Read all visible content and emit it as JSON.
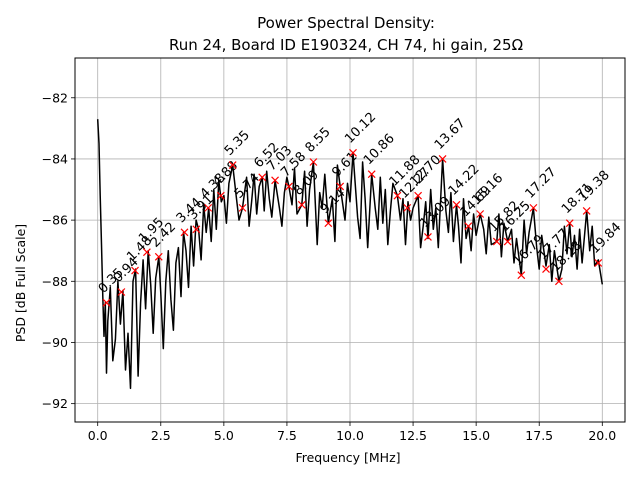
{
  "chart_data": {
    "type": "line",
    "title": "Power Spectral Density:",
    "subtitle": "Run 24, Board ID E190324, CH 74, hi gain, 25Ω",
    "xlabel": "Frequency [MHz]",
    "ylabel": "PSD [dB Full Scale]",
    "xlim": [
      -0.9,
      20.9
    ],
    "ylim": [
      -92.6,
      -80.7
    ],
    "xticks": [
      0.0,
      2.5,
      5.0,
      7.5,
      10.0,
      12.5,
      15.0,
      17.5,
      20.0
    ],
    "xtick_labels": [
      "0.0",
      "2.5",
      "5.0",
      "7.5",
      "10.0",
      "12.5",
      "15.0",
      "17.5",
      "20.0"
    ],
    "yticks": [
      -92,
      -90,
      -88,
      -86,
      -84,
      -82
    ],
    "ytick_labels": [
      "−92",
      "−90",
      "−88",
      "−86",
      "−84",
      "−82"
    ],
    "grid": true,
    "line_color": "#000000",
    "marker_color": "#ff0000",
    "series": [
      {
        "x": [
          0.0,
          0.05,
          0.1,
          0.15,
          0.2,
          0.25,
          0.3,
          0.35,
          0.4,
          0.5,
          0.6,
          0.7,
          0.8,
          0.9,
          1.0,
          1.1,
          1.2,
          1.3,
          1.4,
          1.5,
          1.6,
          1.7,
          1.8,
          1.9,
          2.0,
          2.1,
          2.2,
          2.3,
          2.42,
          2.5,
          2.6,
          2.7,
          2.8,
          2.9,
          3.0,
          3.1,
          3.2,
          3.3,
          3.4,
          3.5,
          3.6,
          3.7,
          3.8,
          3.9,
          4.0,
          4.1,
          4.2,
          4.3,
          4.4,
          4.5,
          4.6,
          4.7,
          4.8,
          4.9,
          5.0,
          5.1,
          5.2,
          5.35,
          5.5,
          5.6,
          5.74,
          5.9,
          6.0,
          6.1,
          6.2,
          6.3,
          6.4,
          6.52,
          6.6,
          6.7,
          6.8,
          6.9,
          7.03,
          7.2,
          7.3,
          7.4,
          7.5,
          7.58,
          7.7,
          7.8,
          7.9,
          8.09,
          8.2,
          8.3,
          8.4,
          8.55,
          8.7,
          8.8,
          8.9,
          9.0,
          9.14,
          9.3,
          9.4,
          9.5,
          9.61,
          9.8,
          9.9,
          10.0,
          10.12,
          10.3,
          10.4,
          10.5,
          10.6,
          10.7,
          10.86,
          11.0,
          11.1,
          11.2,
          11.3,
          11.4,
          11.5,
          11.6,
          11.7,
          11.88,
          12.0,
          12.1,
          12.2,
          12.3,
          12.4,
          12.5,
          12.7,
          12.8,
          12.9,
          13.0,
          13.09,
          13.2,
          13.3,
          13.4,
          13.5,
          13.67,
          13.8,
          13.9,
          14.0,
          14.1,
          14.22,
          14.3,
          14.4,
          14.5,
          14.6,
          14.7,
          14.8,
          14.9,
          15.0,
          15.16,
          15.3,
          15.4,
          15.5,
          15.6,
          15.82,
          15.9,
          16.0,
          16.1,
          16.25,
          16.4,
          16.5,
          16.6,
          16.79,
          16.9,
          17.0,
          17.1,
          17.27,
          17.4,
          17.5,
          17.6,
          17.77,
          17.9,
          18.0,
          18.1,
          18.28,
          18.4,
          18.5,
          18.6,
          18.71,
          18.8,
          18.9,
          19.0,
          19.1,
          19.2,
          19.38,
          19.5,
          19.6,
          19.7,
          19.84,
          20.0
        ],
        "y": [
          -82.7,
          -83.5,
          -85.2,
          -86.8,
          -88.5,
          -89.8,
          -88.7,
          -91.0,
          -89.3,
          -88.2,
          -90.6,
          -89.9,
          -88.0,
          -89.4,
          -88.3,
          -90.9,
          -89.7,
          -91.5,
          -88.0,
          -87.6,
          -91.1,
          -88.7,
          -87.3,
          -88.9,
          -87.0,
          -88.1,
          -89.7,
          -87.9,
          -87.2,
          -88.4,
          -90.2,
          -88.0,
          -87.0,
          -88.6,
          -89.6,
          -87.4,
          -86.9,
          -88.5,
          -86.4,
          -87.0,
          -88.2,
          -86.2,
          -87.5,
          -86.0,
          -86.3,
          -87.3,
          -85.5,
          -86.4,
          -85.6,
          -86.7,
          -85.0,
          -86.3,
          -84.7,
          -85.4,
          -85.2,
          -86.1,
          -84.8,
          -84.2,
          -85.3,
          -86.0,
          -85.6,
          -84.6,
          -86.2,
          -85.4,
          -84.5,
          -85.8,
          -84.9,
          -84.6,
          -85.7,
          -84.4,
          -85.3,
          -85.9,
          -84.7,
          -85.6,
          -86.2,
          -85.1,
          -84.6,
          -84.9,
          -85.5,
          -84.3,
          -85.8,
          -85.5,
          -84.4,
          -86.2,
          -85.0,
          -84.1,
          -86.8,
          -85.1,
          -85.6,
          -84.5,
          -86.1,
          -85.3,
          -86.7,
          -84.2,
          -84.9,
          -86.0,
          -84.8,
          -85.4,
          -83.8,
          -85.9,
          -86.6,
          -84.1,
          -85.3,
          -86.9,
          -84.5,
          -85.6,
          -86.3,
          -84.6,
          -86.1,
          -85.0,
          -86.8,
          -85.7,
          -84.8,
          -85.2,
          -86.0,
          -85.3,
          -86.8,
          -85.4,
          -86.0,
          -85.6,
          -85.2,
          -86.9,
          -86.2,
          -85.4,
          -86.6,
          -85.0,
          -86.3,
          -85.6,
          -86.9,
          -84.0,
          -85.7,
          -86.4,
          -85.1,
          -86.7,
          -85.5,
          -86.2,
          -87.4,
          -85.3,
          -86.6,
          -86.2,
          -87.0,
          -85.8,
          -86.5,
          -85.8,
          -86.3,
          -87.1,
          -85.9,
          -86.8,
          -86.7,
          -85.8,
          -87.2,
          -86.1,
          -86.7,
          -86.3,
          -87.4,
          -86.6,
          -87.8,
          -86.0,
          -87.1,
          -86.4,
          -85.6,
          -86.9,
          -87.6,
          -86.5,
          -87.5,
          -86.8,
          -88.0,
          -87.0,
          -88.0,
          -87.6,
          -86.2,
          -87.1,
          -86.1,
          -87.2,
          -86.5,
          -87.6,
          -86.3,
          -87.4,
          -85.7,
          -87.0,
          -86.2,
          -87.5,
          -87.3,
          -88.1
        ]
      }
    ],
    "peaks": [
      {
        "x": 0.35,
        "y": -88.7,
        "label": "0.35"
      },
      {
        "x": 0.94,
        "y": -88.35,
        "label": "0.94"
      },
      {
        "x": 1.48,
        "y": -87.65,
        "label": "1.48"
      },
      {
        "x": 1.95,
        "y": -87.05,
        "label": "1.95"
      },
      {
        "x": 2.42,
        "y": -87.2,
        "label": "2.42"
      },
      {
        "x": 3.44,
        "y": -86.4,
        "label": "3.44"
      },
      {
        "x": 3.91,
        "y": -86.3,
        "label": "3.91"
      },
      {
        "x": 4.38,
        "y": -85.6,
        "label": "4.38"
      },
      {
        "x": 4.88,
        "y": -85.2,
        "label": "4.88"
      },
      {
        "x": 5.35,
        "y": -84.2,
        "label": "5.35"
      },
      {
        "x": 5.74,
        "y": -85.6,
        "label": "5.74"
      },
      {
        "x": 6.52,
        "y": -84.6,
        "label": "6.52"
      },
      {
        "x": 7.03,
        "y": -84.7,
        "label": "7.03"
      },
      {
        "x": 7.58,
        "y": -84.9,
        "label": "7.58"
      },
      {
        "x": 8.09,
        "y": -85.5,
        "label": "8.09"
      },
      {
        "x": 8.55,
        "y": -84.1,
        "label": "8.55"
      },
      {
        "x": 9.14,
        "y": -86.1,
        "label": "9.14"
      },
      {
        "x": 9.61,
        "y": -84.9,
        "label": "9.61"
      },
      {
        "x": 10.12,
        "y": -83.8,
        "label": "10.12"
      },
      {
        "x": 10.86,
        "y": -84.5,
        "label": "10.86"
      },
      {
        "x": 11.88,
        "y": -85.2,
        "label": "11.88"
      },
      {
        "x": 12.27,
        "y": -85.6,
        "label": "12.27"
      },
      {
        "x": 12.7,
        "y": -85.2,
        "label": "12.70"
      },
      {
        "x": 13.09,
        "y": -86.55,
        "label": "13.09"
      },
      {
        "x": 13.67,
        "y": -84.0,
        "label": "13.67"
      },
      {
        "x": 14.22,
        "y": -85.5,
        "label": "14.22"
      },
      {
        "x": 14.69,
        "y": -86.2,
        "label": "14.69"
      },
      {
        "x": 15.16,
        "y": -85.8,
        "label": "15.16"
      },
      {
        "x": 15.82,
        "y": -86.7,
        "label": "15.82"
      },
      {
        "x": 16.25,
        "y": -86.7,
        "label": "16.25"
      },
      {
        "x": 16.79,
        "y": -87.8,
        "label": "16.79"
      },
      {
        "x": 17.27,
        "y": -85.6,
        "label": "17.27"
      },
      {
        "x": 17.77,
        "y": -87.6,
        "label": "17.77"
      },
      {
        "x": 18.28,
        "y": -88.0,
        "label": "18.28"
      },
      {
        "x": 18.71,
        "y": -86.1,
        "label": "18.71"
      },
      {
        "x": 19.38,
        "y": -85.7,
        "label": "19.38"
      },
      {
        "x": 19.84,
        "y": -87.4,
        "label": "19.84"
      }
    ]
  }
}
